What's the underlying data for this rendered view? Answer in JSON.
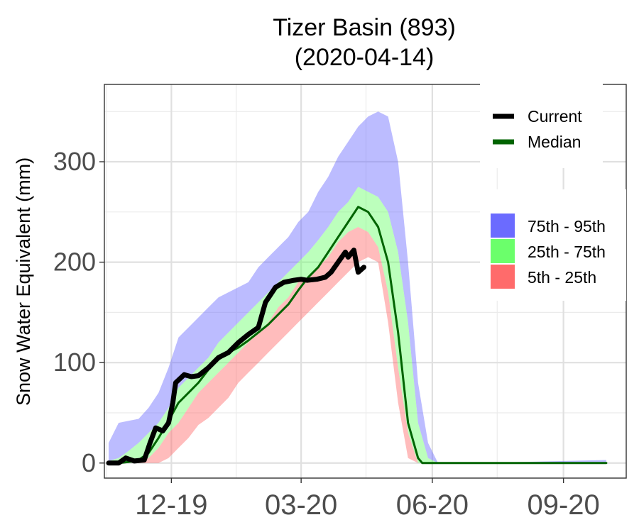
{
  "title_line1": "Tizer Basin (893)",
  "title_line2": "(2020-04-14)",
  "colors": {
    "current": "#000000",
    "median": "#006400",
    "band_75_95": "#6b6bff",
    "band_25_75": "#6bff6b",
    "band_5_25": "#ff6b6b"
  },
  "chart_data": {
    "type": "area",
    "title": "Tizer Basin (893)",
    "subtitle": "(2020-04-14)",
    "xlabel": "",
    "ylabel": "Snow Water Equivalent (mm)",
    "xlim": [
      "2019-10-15",
      "2020-10-15"
    ],
    "ylim": [
      -15,
      377
    ],
    "x_ticks": [
      {
        "date": "2019-12-01",
        "label": "12-19"
      },
      {
        "date": "2020-03-01",
        "label": "03-20"
      },
      {
        "date": "2020-06-01",
        "label": "06-20"
      },
      {
        "date": "2020-09-01",
        "label": "09-20"
      }
    ],
    "y_ticks": [
      0,
      100,
      200,
      300
    ],
    "grid": true,
    "legend_lines": [
      {
        "name": "Current",
        "color": "#000000"
      },
      {
        "name": "Median",
        "color": "#006400"
      }
    ],
    "legend_bands": [
      {
        "name": "75th - 95th",
        "color": "#6b6bff"
      },
      {
        "name": "25th - 75th",
        "color": "#6bff6b"
      },
      {
        "name": "5th - 25th",
        "color": "#ff6b6b"
      }
    ],
    "legend_position": "right",
    "bands": {
      "x": [
        "2019-10-18",
        "2019-10-25",
        "2019-11-01",
        "2019-11-08",
        "2019-11-15",
        "2019-11-22",
        "2019-11-29",
        "2019-12-06",
        "2019-12-13",
        "2019-12-20",
        "2019-12-27",
        "2020-01-03",
        "2020-01-10",
        "2020-01-17",
        "2020-01-24",
        "2020-01-31",
        "2020-02-07",
        "2020-02-14",
        "2020-02-21",
        "2020-02-28",
        "2020-03-06",
        "2020-03-13",
        "2020-03-20",
        "2020-03-27",
        "2020-04-03",
        "2020-04-10",
        "2020-04-17",
        "2020-04-24",
        "2020-05-01",
        "2020-05-08",
        "2020-05-15",
        "2020-05-22",
        "2020-05-29",
        "2020-06-05",
        "2020-06-12",
        "2020-06-19",
        "2020-06-26",
        "2020-07-03",
        "2020-10-01"
      ],
      "p5": [
        0,
        0,
        0,
        0,
        0,
        0,
        5,
        15,
        25,
        38,
        45,
        55,
        65,
        80,
        90,
        100,
        110,
        120,
        130,
        140,
        150,
        160,
        170,
        180,
        190,
        200,
        205,
        200,
        140,
        60,
        5,
        0,
        0,
        0,
        0,
        0,
        0,
        0,
        0
      ],
      "p25": [
        0,
        0,
        0,
        0,
        5,
        15,
        30,
        40,
        55,
        70,
        80,
        90,
        100,
        110,
        120,
        130,
        140,
        155,
        165,
        180,
        185,
        195,
        205,
        220,
        230,
        235,
        230,
        215,
        170,
        95,
        30,
        0,
        0,
        0,
        0,
        0,
        0,
        0,
        0
      ],
      "p75": [
        2,
        5,
        12,
        20,
        30,
        40,
        55,
        75,
        85,
        95,
        105,
        120,
        130,
        140,
        150,
        160,
        170,
        180,
        190,
        200,
        210,
        222,
        235,
        250,
        260,
        275,
        270,
        265,
        250,
        210,
        140,
        40,
        5,
        0,
        0,
        0,
        0,
        0,
        0
      ],
      "p95": [
        20,
        40,
        42,
        44,
        55,
        70,
        95,
        125,
        135,
        145,
        155,
        165,
        170,
        175,
        180,
        195,
        205,
        215,
        225,
        240,
        250,
        270,
        285,
        305,
        320,
        335,
        345,
        350,
        345,
        300,
        200,
        80,
        20,
        0,
        0,
        0,
        0,
        0,
        3
      ]
    },
    "median": {
      "x": [
        "2019-10-18",
        "2019-10-25",
        "2019-11-01",
        "2019-11-08",
        "2019-11-15",
        "2019-11-22",
        "2019-11-29",
        "2019-12-06",
        "2019-12-13",
        "2019-12-20",
        "2019-12-27",
        "2020-01-03",
        "2020-01-10",
        "2020-01-17",
        "2020-01-24",
        "2020-01-31",
        "2020-02-07",
        "2020-02-14",
        "2020-02-21",
        "2020-02-28",
        "2020-03-06",
        "2020-03-13",
        "2020-03-20",
        "2020-03-27",
        "2020-04-03",
        "2020-04-10",
        "2020-04-17",
        "2020-04-24",
        "2020-05-01",
        "2020-05-08",
        "2020-05-15",
        "2020-05-22",
        "2020-05-25",
        "2020-06-01",
        "2020-10-01"
      ],
      "values": [
        0,
        0,
        1,
        3,
        10,
        25,
        42,
        60,
        70,
        80,
        93,
        103,
        110,
        115,
        122,
        130,
        138,
        148,
        158,
        172,
        185,
        195,
        210,
        225,
        240,
        255,
        250,
        235,
        200,
        130,
        40,
        5,
        0,
        0,
        0
      ]
    },
    "current": {
      "x": [
        "2019-10-18",
        "2019-10-25",
        "2019-10-30",
        "2019-11-05",
        "2019-11-12",
        "2019-11-16",
        "2019-11-20",
        "2019-11-25",
        "2019-11-29",
        "2019-12-02",
        "2019-12-04",
        "2019-12-10",
        "2019-12-15",
        "2019-12-20",
        "2019-12-27",
        "2020-01-03",
        "2020-01-10",
        "2020-01-17",
        "2020-01-24",
        "2020-01-31",
        "2020-02-05",
        "2020-02-12",
        "2020-02-18",
        "2020-02-25",
        "2020-03-01",
        "2020-03-05",
        "2020-03-12",
        "2020-03-18",
        "2020-03-22",
        "2020-03-27",
        "2020-04-01",
        "2020-04-03",
        "2020-04-07",
        "2020-04-10",
        "2020-04-14"
      ],
      "values": [
        0,
        0,
        5,
        2,
        3,
        20,
        35,
        32,
        40,
        60,
        80,
        88,
        86,
        87,
        95,
        105,
        110,
        120,
        128,
        135,
        160,
        175,
        180,
        182,
        183,
        182,
        183,
        185,
        190,
        200,
        210,
        205,
        212,
        190,
        195
      ]
    }
  }
}
